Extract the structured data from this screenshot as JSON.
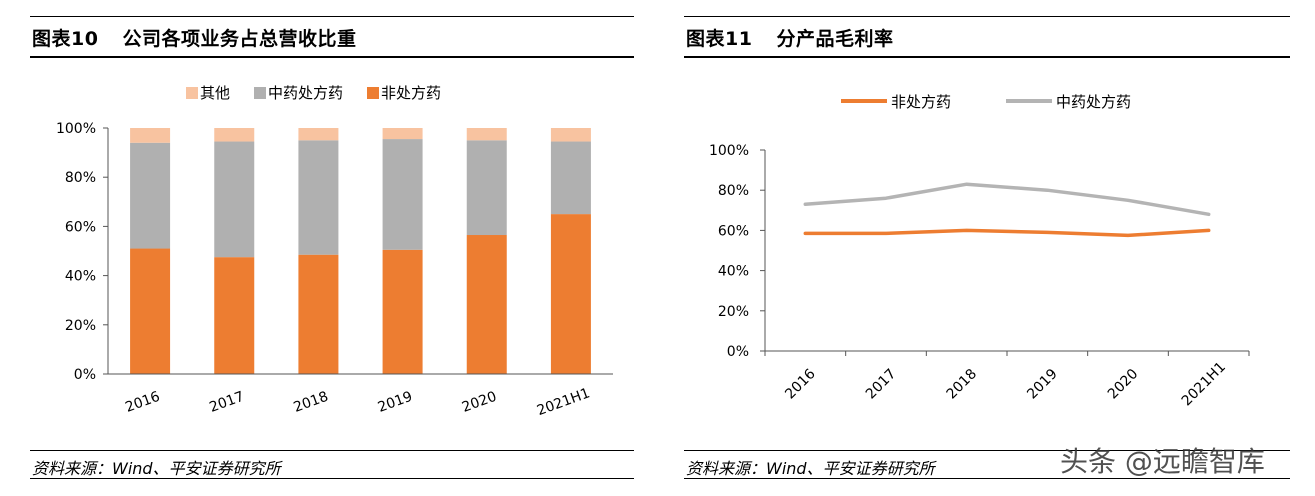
{
  "left": {
    "fig_num": "图表10",
    "title": "公司各项业务占总营收比重",
    "source": "资料来源：Wind、平安证券研究所"
  },
  "right": {
    "fig_num": "图表11",
    "title": "分产品毛利率",
    "source": "资料来源：Wind、平安证券研究所"
  },
  "watermark": "头条 @远瞻智库",
  "chart_data": [
    {
      "type": "bar",
      "stacked": true,
      "percent": true,
      "categories": [
        "2016",
        "2017",
        "2018",
        "2019",
        "2020",
        "2021H1"
      ],
      "series": [
        {
          "name": "非处方药",
          "color": "#ED7D31",
          "values": [
            51,
            47.5,
            48.5,
            50.5,
            56.5,
            65
          ]
        },
        {
          "name": "中药处方药",
          "color": "#B0B0B0",
          "values": [
            43,
            47,
            46.5,
            45,
            38.5,
            29.5
          ]
        },
        {
          "name": "其他",
          "color": "#F8C3A0",
          "values": [
            6,
            5.5,
            5,
            4.5,
            5,
            5.5
          ]
        }
      ],
      "legend_order": [
        2,
        1,
        0
      ],
      "ylim": [
        0,
        100
      ],
      "yticks": [
        "0%",
        "20%",
        "40%",
        "60%",
        "80%",
        "100%"
      ],
      "legend_position": "top"
    },
    {
      "type": "line",
      "categories": [
        "2016",
        "2017",
        "2018",
        "2019",
        "2020",
        "2021H1"
      ],
      "series": [
        {
          "name": "非处方药",
          "color": "#ED7D31",
          "values": [
            58.5,
            58.5,
            60,
            59,
            57.5,
            60
          ]
        },
        {
          "name": "中药处方药",
          "color": "#B4B4B4",
          "values": [
            73,
            76,
            83,
            80,
            75,
            68
          ]
        }
      ],
      "ylim": [
        0,
        100
      ],
      "yticks": [
        "0%",
        "20%",
        "40%",
        "60%",
        "80%",
        "100%"
      ],
      "legend_position": "top"
    }
  ]
}
